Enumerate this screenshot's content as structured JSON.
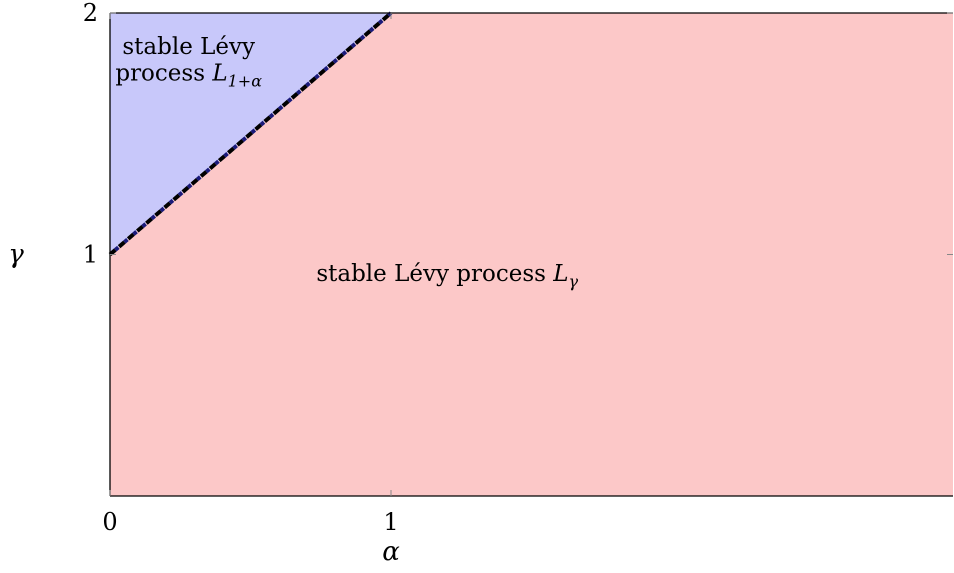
{
  "chart_data": {
    "type": "area",
    "title": "",
    "xlabel": "α",
    "ylabel": "γ",
    "xlim": [
      0,
      3
    ],
    "ylim": [
      0,
      2
    ],
    "x_ticks": [
      {
        "value": 0,
        "label": "0"
      },
      {
        "value": 1,
        "label": "1"
      }
    ],
    "y_ticks": [
      {
        "value": 1,
        "label": "1"
      },
      {
        "value": 2,
        "label": "2"
      }
    ],
    "grid": false,
    "regions": [
      {
        "id": "upper",
        "color": "#c8c8fa",
        "polygon": [
          [
            0,
            1
          ],
          [
            1,
            2
          ],
          [
            0,
            2
          ]
        ],
        "label_lines": [
          {
            "text": "stable Lévy",
            "anchor": [
              0.28,
              1.83
            ]
          },
          {
            "text": "process",
            "math": "L",
            "subscript": "1+α",
            "anchor": [
              0.28,
              1.72
            ]
          }
        ]
      },
      {
        "id": "lower",
        "color": "#fcc8c8",
        "polygon": [
          [
            0,
            0
          ],
          [
            3,
            0
          ],
          [
            3,
            2
          ],
          [
            1,
            2
          ],
          [
            0,
            1
          ]
        ],
        "label_lines": [
          {
            "text": "stable Lévy process",
            "math": "L",
            "subscript": "γ",
            "anchor": [
              1.2,
              0.89
            ]
          }
        ]
      }
    ],
    "boundary": {
      "x": [
        0,
        1
      ],
      "y": [
        1,
        2
      ],
      "style": "dashed",
      "colors": [
        "#000000",
        "#1a1a7a"
      ]
    }
  }
}
